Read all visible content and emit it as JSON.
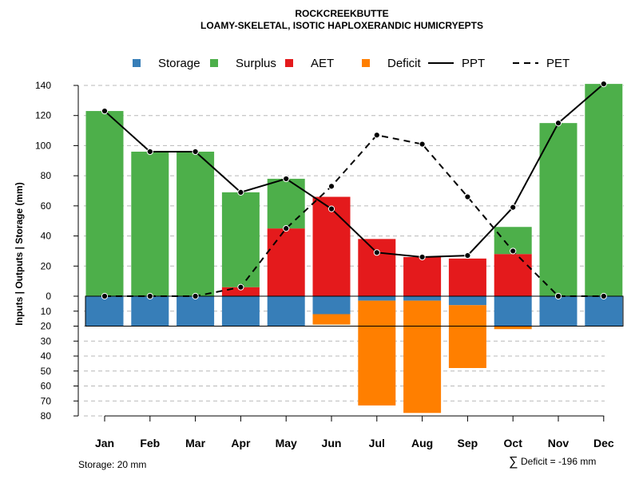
{
  "chart_data": {
    "type": "bar",
    "title": "ROCKCREEKBUTTE",
    "subtitle": "LOAMY-SKELETAL, ISOTIC HAPLOXERANDIC HUMICRYEPTS",
    "ylabel": "Inputs | Outputs | Storage    (mm)",
    "categories": [
      "Jan",
      "Feb",
      "Mar",
      "Apr",
      "May",
      "Jun",
      "Jul",
      "Aug",
      "Sep",
      "Oct",
      "Nov",
      "Dec"
    ],
    "ylim": [
      -80,
      145
    ],
    "yticks_positive": [
      0,
      20,
      40,
      60,
      80,
      100,
      120,
      140
    ],
    "yticks_negative": [
      10,
      20,
      30,
      40,
      50,
      60,
      70,
      80
    ],
    "grid": true,
    "legend_position": "top",
    "legend": [
      {
        "key": "storage",
        "label": "Storage",
        "color": "#377eb8",
        "kind": "box"
      },
      {
        "key": "surplus",
        "label": "Surplus",
        "color": "#4daf4a",
        "kind": "box"
      },
      {
        "key": "aet",
        "label": "AET",
        "color": "#e41a1c",
        "kind": "box"
      },
      {
        "key": "deficit",
        "label": "Deficit",
        "color": "#ff7f00",
        "kind": "box"
      },
      {
        "key": "ppt",
        "label": "PPT",
        "color": "#000000",
        "kind": "solid"
      },
      {
        "key": "pet",
        "label": "PET",
        "color": "#000000",
        "kind": "dashed"
      }
    ],
    "series": [
      {
        "name": "AET",
        "values": [
          0,
          0,
          0,
          6,
          45,
          66,
          38,
          26,
          25,
          28,
          0,
          0
        ]
      },
      {
        "name": "Surplus",
        "values": [
          123,
          96,
          96,
          63,
          33,
          0,
          0,
          0,
          0,
          18,
          115,
          141
        ]
      },
      {
        "name": "Storage",
        "values": [
          20,
          20,
          20,
          20,
          20,
          12,
          3,
          3,
          6,
          20,
          20,
          20
        ]
      },
      {
        "name": "Deficit",
        "values": [
          0,
          0,
          0,
          0,
          0,
          7,
          70,
          75,
          42,
          2,
          0,
          0
        ]
      },
      {
        "name": "PPT",
        "values": [
          123,
          96,
          96,
          69,
          78,
          58,
          29,
          26,
          27,
          59,
          115,
          141
        ]
      },
      {
        "name": "PET",
        "values": [
          0,
          0,
          0,
          6,
          45,
          73,
          107,
          101,
          66,
          30,
          0,
          0
        ]
      }
    ],
    "storage_capacity": 20
  },
  "footer": {
    "storage_note": "Storage: 20 mm",
    "deficit_symbol": "∑",
    "deficit_note": "Deficit = -196 mm"
  }
}
